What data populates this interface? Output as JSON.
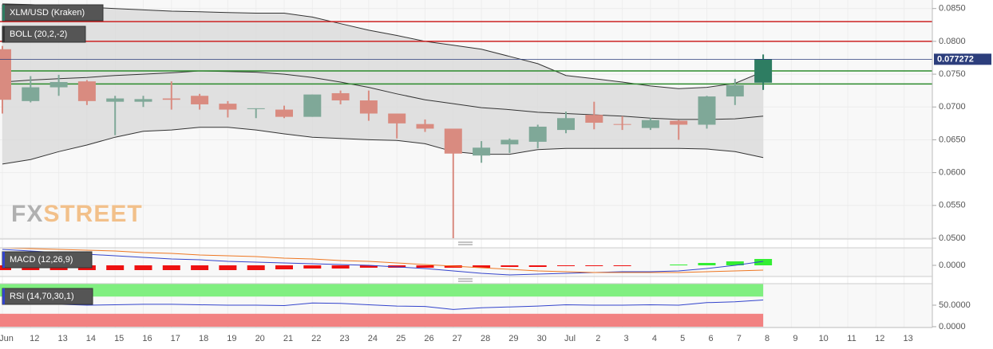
{
  "chart_data": [
    {
      "type": "candlestick",
      "title": "XLM/USD (Kraken)",
      "indicator": "BOLL (20,2,-2)",
      "categories": [
        "Jun",
        "12",
        "13",
        "14",
        "15",
        "16",
        "17",
        "18",
        "19",
        "20",
        "21",
        "22",
        "23",
        "24",
        "25",
        "26",
        "27",
        "28",
        "29",
        "30",
        "Jul",
        "2",
        "3",
        "4",
        "5",
        "6",
        "7",
        "8",
        "9",
        "10",
        "11",
        "12",
        "13"
      ],
      "open": [
        0.0788,
        0.0709,
        0.073,
        0.0739,
        0.0708,
        0.0708,
        0.0713,
        0.0717,
        0.0705,
        0.0697,
        0.0696,
        0.0685,
        0.0721,
        0.071,
        0.069,
        0.0674,
        0.0667,
        0.0626,
        0.0643,
        0.0647,
        0.0665,
        0.0688,
        0.0674,
        0.0668,
        0.0679,
        0.0673,
        0.0716,
        0.0737,
        null,
        null,
        null,
        null,
        null
      ],
      "high": [
        0.0793,
        0.0747,
        0.0749,
        0.0741,
        0.0717,
        0.0717,
        0.0739,
        0.072,
        0.0709,
        0.0698,
        0.0702,
        0.0719,
        0.0725,
        0.0725,
        0.069,
        0.0681,
        0.0667,
        0.0648,
        0.0652,
        0.0673,
        0.0693,
        0.0708,
        0.0686,
        0.0683,
        0.068,
        0.0717,
        0.0743,
        0.078,
        null,
        null,
        null,
        null,
        null
      ],
      "low": [
        0.069,
        0.0707,
        0.0717,
        0.0703,
        0.0657,
        0.07,
        0.0696,
        0.0696,
        0.0684,
        0.0683,
        0.0683,
        0.0685,
        0.0704,
        0.0679,
        0.0652,
        0.0662,
        0.05,
        0.0615,
        0.063,
        0.0637,
        0.066,
        0.0666,
        0.0665,
        0.0665,
        0.065,
        0.0667,
        0.0703,
        0.0726,
        null,
        null,
        null,
        null,
        null
      ],
      "close": [
        0.0711,
        0.073,
        0.0738,
        0.0709,
        0.0713,
        0.0712,
        0.0711,
        0.0704,
        0.0696,
        0.0698,
        0.0685,
        0.0719,
        0.071,
        0.069,
        0.0675,
        0.0667,
        0.0629,
        0.0638,
        0.065,
        0.067,
        0.0683,
        0.0676,
        0.0673,
        0.068,
        0.0673,
        0.0716,
        0.0733,
        0.07727,
        null,
        null,
        null,
        null,
        null
      ],
      "up_color": "#7fa898",
      "down_color": "#d98b80",
      "last_color": "#2e7d62",
      "bands": {
        "color": "#333333",
        "fill": "#d9d9d9",
        "upper": [
          0.0857,
          0.0856,
          0.0854,
          0.0852,
          0.085,
          0.0848,
          0.0846,
          0.0845,
          0.0844,
          0.0843,
          0.0843,
          0.0837,
          0.0827,
          0.0817,
          0.0809,
          0.08,
          0.0794,
          0.0788,
          0.0777,
          0.0766,
          0.0748,
          0.0743,
          0.0738,
          0.0732,
          0.0728,
          0.073,
          0.0736,
          0.0754,
          null,
          null,
          null,
          null,
          null
        ],
        "middle": [
          0.0738,
          0.0741,
          0.0743,
          0.0745,
          0.0748,
          0.075,
          0.0752,
          0.0755,
          0.0754,
          0.0753,
          0.075,
          0.0745,
          0.0738,
          0.073,
          0.072,
          0.0711,
          0.0705,
          0.0699,
          0.0696,
          0.0692,
          0.069,
          0.0688,
          0.0686,
          0.0683,
          0.0681,
          0.0681,
          0.0682,
          0.0686,
          null,
          null,
          null,
          null,
          null
        ],
        "lower": [
          0.0613,
          0.062,
          0.0632,
          0.0642,
          0.0654,
          0.0663,
          0.0665,
          0.0669,
          0.0669,
          0.0665,
          0.0659,
          0.0654,
          0.0652,
          0.065,
          0.0649,
          0.0644,
          0.0632,
          0.0628,
          0.0628,
          0.0635,
          0.0637,
          0.0637,
          0.0637,
          0.0637,
          0.0637,
          0.0636,
          0.0632,
          0.0623,
          null,
          null,
          null,
          null,
          null
        ]
      },
      "levels": [
        {
          "value": 0.083,
          "color": "#cc2222"
        },
        {
          "value": 0.08,
          "color": "#cc2222"
        },
        {
          "value": 0.0755,
          "color": "#2b8a2b"
        },
        {
          "value": 0.0735,
          "color": "#2b8a2b"
        }
      ],
      "last_price": 0.077272,
      "last_price_color": "#2c3e7c",
      "ylim": [
        0.05,
        0.0863
      ],
      "yticks": [
        {
          "value": 0.085,
          "label": "0.0850"
        },
        {
          "value": 0.08,
          "label": "0.0800"
        },
        {
          "value": 0.075,
          "label": "0.0750"
        },
        {
          "value": 0.07,
          "label": "0.0700"
        },
        {
          "value": 0.065,
          "label": "0.0650"
        },
        {
          "value": 0.06,
          "label": "0.0600"
        },
        {
          "value": 0.055,
          "label": "0.0550"
        },
        {
          "value": 0.05,
          "label": "0.0500"
        }
      ],
      "grid": true,
      "watermark": [
        "FX",
        "STREET"
      ]
    },
    {
      "type": "macd",
      "indicator": "MACD (12,26,9)",
      "histogram": [
        -0.0006,
        -0.0006,
        -0.0006,
        -0.0006,
        -0.0006,
        -0.0006,
        -0.0006,
        -0.0006,
        -0.0006,
        -0.0006,
        -0.0005,
        -0.0004,
        -0.0004,
        -0.0003,
        -0.0003,
        -0.0003,
        -0.0003,
        -0.0003,
        -0.0002,
        -0.0002,
        -0.0001,
        -0.0001,
        -0.0001,
        0.0,
        0.0001,
        0.0003,
        0.0005,
        0.0008,
        null,
        null,
        null,
        null,
        null
      ],
      "macd": [
        0.002,
        0.0018,
        0.0016,
        0.0014,
        0.0012,
        0.001,
        0.0008,
        0.0007,
        0.0005,
        0.0004,
        0.0003,
        0.0002,
        0.0001,
        0.0,
        -0.0002,
        -0.0004,
        -0.0007,
        -0.001,
        -0.0012,
        -0.0011,
        -0.001,
        -0.0009,
        -0.0008,
        -0.0008,
        -0.0007,
        -0.0004,
        0.0,
        0.0005,
        null,
        null,
        null,
        null,
        null
      ],
      "signal": [
        0.0022,
        0.0021,
        0.002,
        0.0019,
        0.0018,
        0.0016,
        0.0015,
        0.0013,
        0.0012,
        0.0011,
        0.0009,
        0.0008,
        0.0006,
        0.0005,
        0.0003,
        0.0001,
        -0.0001,
        -0.0003,
        -0.0005,
        -0.0007,
        -0.0008,
        -0.0009,
        -0.0009,
        -0.0009,
        -0.0009,
        -0.0008,
        -0.0007,
        -0.0006,
        null,
        null,
        null,
        null,
        null
      ],
      "macd_color": "#3344cc",
      "signal_color": "#ee7722",
      "up_color": "#33ee33",
      "down_color": "#ee1111",
      "ylim": [
        -0.0014,
        0.0022
      ],
      "yticks": [
        {
          "value": 0,
          "label": "0.0000"
        }
      ]
    },
    {
      "type": "rsi",
      "indicator": "RSI (14,70,30,1)",
      "values": [
        54,
        53,
        52,
        50,
        51,
        52,
        52,
        51,
        50,
        50,
        49,
        55,
        54,
        51,
        48,
        47,
        40,
        44,
        46,
        48,
        51,
        50,
        50,
        51,
        50,
        56,
        58,
        62,
        null,
        null,
        null,
        null,
        null
      ],
      "color": "#3344cc",
      "zones": [
        {
          "from": 70,
          "to": 100,
          "color": "#80ef80"
        },
        {
          "from": 0,
          "to": 30,
          "color": "#f28282"
        }
      ],
      "ylim": [
        0,
        100
      ],
      "yticks": [
        {
          "value": 50,
          "label": "50.0000"
        },
        {
          "value": 0,
          "label": "0.0000"
        }
      ]
    }
  ]
}
